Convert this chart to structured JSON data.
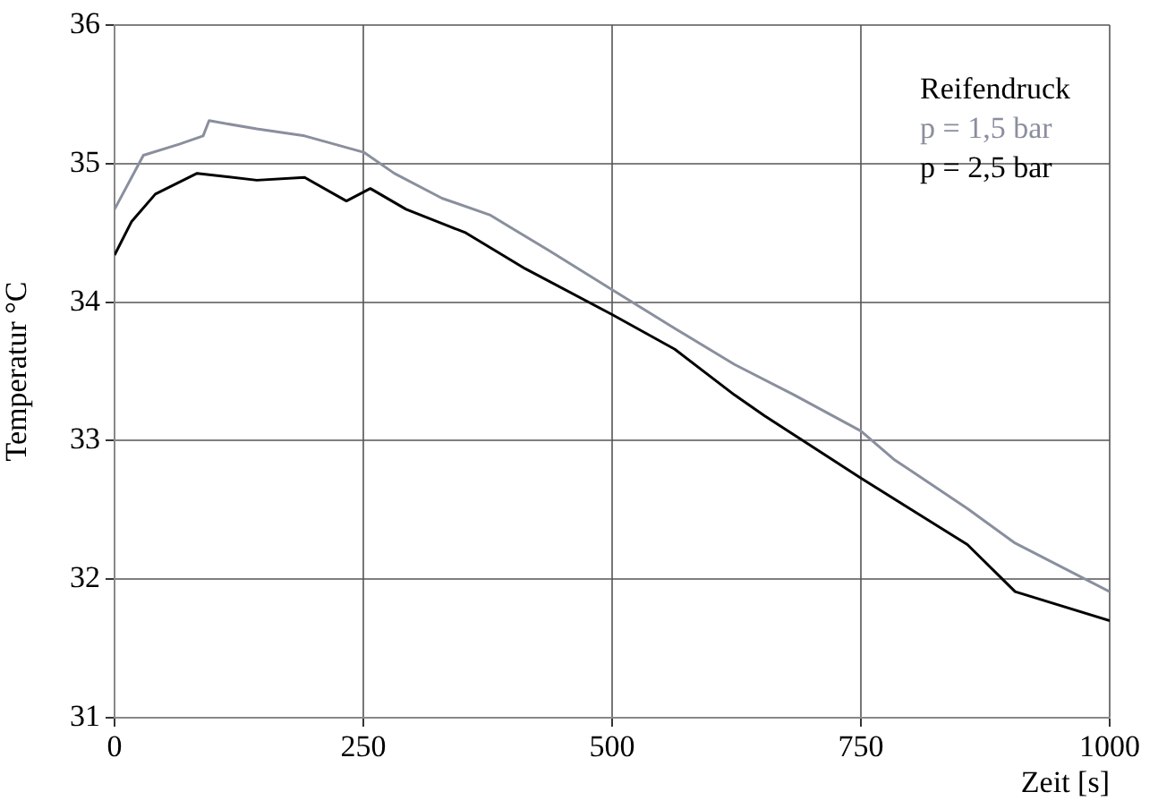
{
  "chart_data": {
    "type": "line",
    "xlabel": "Zeit [s]",
    "ylabel": "Temperatur °C",
    "legend_title": "Reifendruck",
    "legend": "top right",
    "grid": true,
    "line_style": "solid",
    "marker": "none",
    "xlim": [
      0,
      1000
    ],
    "xticks": [
      0,
      250,
      500,
      750,
      1000
    ],
    "ylim": [
      31,
      36
    ],
    "yticks": [
      31,
      32,
      33,
      34,
      35,
      36
    ],
    "series": [
      {
        "name": "p = 1,5 bar",
        "color": "#8a8f9e",
        "x": [
          0,
          29,
          65,
          89,
          95,
          143,
          191,
          251,
          281,
          329,
          377,
          437,
          500,
          563,
          623,
          683,
          750,
          784,
          803,
          857,
          905,
          1000
        ],
        "values": [
          34.67,
          35.06,
          35.14,
          35.2,
          35.31,
          35.25,
          35.2,
          35.08,
          34.93,
          34.75,
          34.63,
          34.37,
          34.09,
          33.81,
          33.55,
          33.33,
          33.07,
          32.86,
          32.77,
          32.51,
          32.26,
          31.91
        ]
      },
      {
        "name": "p = 2,5 bar",
        "color": "#000000",
        "x": [
          0,
          17,
          41,
          83,
          143,
          191,
          233,
          257,
          293,
          353,
          413,
          500,
          563,
          623,
          653,
          750,
          857,
          905,
          1000
        ],
        "values": [
          34.34,
          34.58,
          34.78,
          34.93,
          34.88,
          34.9,
          34.73,
          34.82,
          34.67,
          34.5,
          34.24,
          33.91,
          33.66,
          33.33,
          33.18,
          32.73,
          32.25,
          31.91,
          31.7
        ]
      }
    ]
  }
}
